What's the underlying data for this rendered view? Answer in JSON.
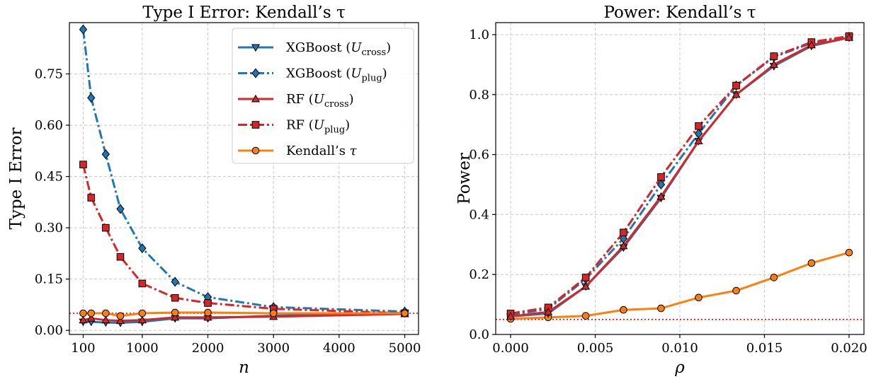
{
  "colors": {
    "xgboost": "#1f77b4",
    "rf": "#d62728",
    "kendall": "#ff7f0e",
    "reference": "#ff0000",
    "grid": "#c8c8c8"
  },
  "chart_data": [
    {
      "type": "line",
      "title": "Type I Error: Kendall’s τ",
      "xlabel": "n",
      "ylabel": "Type I Error",
      "xlim": [
        -110,
        5210
      ],
      "ylim": [
        -0.012,
        0.9
      ],
      "xticks": [
        100,
        1000,
        2000,
        3000,
        4000,
        5000
      ],
      "xtick_labels": [
        "100",
        "1000",
        "2000",
        "3000",
        "4000",
        "5000"
      ],
      "yticks": [
        0.0,
        0.15,
        0.3,
        0.45,
        0.6,
        0.75
      ],
      "ytick_labels": [
        "0.00",
        "0.15",
        "0.30",
        "0.45",
        "0.60",
        "0.75"
      ],
      "reference_line": 0.05,
      "grid": true,
      "legend_position": "upper-right",
      "series": [
        {
          "name": "XGBoost (U_cross)",
          "label_main": "XGBoost (",
          "label_var": "U",
          "label_sub": "cross",
          "label_close": ")",
          "color": "#1f77b4",
          "dash": "solid",
          "marker": "triangle-down",
          "x": [
            100,
            222,
            444,
            667,
            1000,
            1500,
            2000,
            3000,
            5000
          ],
          "y": [
            0.025,
            0.025,
            0.023,
            0.022,
            0.025,
            0.035,
            0.035,
            0.043,
            0.05
          ]
        },
        {
          "name": "XGBoost (U_plug)",
          "label_main": "XGBoost (",
          "label_var": "U",
          "label_sub": "plug",
          "label_close": ")",
          "color": "#1f77b4",
          "dash": "dashdot",
          "marker": "diamond",
          "x": [
            100,
            222,
            444,
            667,
            1000,
            1500,
            2000,
            3000,
            5000
          ],
          "y": [
            0.88,
            0.68,
            0.515,
            0.355,
            0.24,
            0.142,
            0.097,
            0.068,
            0.055
          ]
        },
        {
          "name": "RF (U_cross)",
          "label_main": "RF (",
          "label_var": "U",
          "label_sub": "cross",
          "label_close": ")",
          "color": "#d62728",
          "dash": "solid",
          "marker": "triangle-up",
          "x": [
            100,
            222,
            444,
            667,
            1000,
            1500,
            2000,
            3000,
            5000
          ],
          "y": [
            0.03,
            0.035,
            0.03,
            0.028,
            0.03,
            0.038,
            0.038,
            0.04,
            0.048
          ]
        },
        {
          "name": "RF (U_plug)",
          "label_main": "RF (",
          "label_var": "U",
          "label_sub": "plug",
          "label_close": ")",
          "color": "#d62728",
          "dash": "dashdot",
          "marker": "square",
          "x": [
            100,
            222,
            444,
            667,
            1000,
            1500,
            2000,
            3000,
            5000
          ],
          "y": [
            0.485,
            0.388,
            0.3,
            0.215,
            0.137,
            0.095,
            0.08,
            0.063,
            0.05
          ]
        },
        {
          "name": "Kendall's τ",
          "label_main": "Kendall’s ",
          "label_var": "τ",
          "label_sub": "",
          "label_close": "",
          "color": "#ff7f0e",
          "dash": "solid",
          "marker": "circle",
          "x": [
            100,
            222,
            444,
            667,
            1000,
            1500,
            2000,
            3000,
            5000
          ],
          "y": [
            0.05,
            0.05,
            0.05,
            0.042,
            0.05,
            0.052,
            0.052,
            0.05,
            0.05
          ]
        }
      ]
    },
    {
      "type": "line",
      "title": "Power: Kendall’s τ",
      "xlabel": "ρ",
      "ylabel": "Power",
      "xlim": [
        -0.00088,
        0.02088
      ],
      "ylim": [
        0.0,
        1.04
      ],
      "xticks": [
        0.0,
        0.005,
        0.01,
        0.015,
        0.02
      ],
      "xtick_labels": [
        "0.000",
        "0.005",
        "0.010",
        "0.015",
        "0.020"
      ],
      "yticks": [
        0.0,
        0.2,
        0.4,
        0.6,
        0.8,
        1.0
      ],
      "ytick_labels": [
        "0.0",
        "0.2",
        "0.4",
        "0.6",
        "0.8",
        "1.0"
      ],
      "reference_line": 0.05,
      "grid": true,
      "series": [
        {
          "name": "Kendall's τ",
          "color": "#ff7f0e",
          "dash": "solid",
          "marker": "circle",
          "x": [
            0.0,
            0.00222,
            0.00444,
            0.00667,
            0.00889,
            0.01111,
            0.01333,
            0.01556,
            0.01778,
            0.02
          ],
          "y": [
            0.052,
            0.057,
            0.062,
            0.082,
            0.087,
            0.123,
            0.146,
            0.19,
            0.238,
            0.273
          ]
        },
        {
          "name": "XGBoost (U_cross)",
          "color": "#1f77b4",
          "dash": "solid",
          "marker": "triangle-down",
          "x": [
            0.0,
            0.00222,
            0.00444,
            0.00667,
            0.00889,
            0.01111,
            0.01333,
            0.01556,
            0.01778,
            0.02
          ],
          "y": [
            0.06,
            0.07,
            0.16,
            0.29,
            0.455,
            0.645,
            0.8,
            0.895,
            0.962,
            0.99
          ]
        },
        {
          "name": "XGBoost (U_plug)",
          "color": "#1f77b4",
          "dash": "dashdot",
          "marker": "diamond",
          "x": [
            0.0,
            0.00222,
            0.00444,
            0.00667,
            0.00889,
            0.01111,
            0.01333,
            0.01556,
            0.01778,
            0.02
          ],
          "y": [
            0.065,
            0.085,
            0.185,
            0.32,
            0.5,
            0.67,
            0.83,
            0.925,
            0.972,
            0.993
          ]
        },
        {
          "name": "RF (U_plug)",
          "color": "#d62728",
          "dash": "dashdot",
          "marker": "square",
          "x": [
            0.0,
            0.00222,
            0.00444,
            0.00667,
            0.00889,
            0.01111,
            0.01333,
            0.01556,
            0.01778,
            0.02
          ],
          "y": [
            0.07,
            0.09,
            0.19,
            0.34,
            0.525,
            0.695,
            0.83,
            0.928,
            0.975,
            0.995
          ]
        },
        {
          "name": "RF (U_cross)",
          "color": "#d62728",
          "dash": "solid",
          "marker": "triangle-up",
          "x": [
            0.0,
            0.00222,
            0.00444,
            0.00667,
            0.00889,
            0.01111,
            0.01333,
            0.01556,
            0.01778,
            0.02
          ],
          "y": [
            0.06,
            0.075,
            0.16,
            0.295,
            0.46,
            0.645,
            0.8,
            0.9,
            0.965,
            0.99
          ]
        }
      ]
    }
  ]
}
